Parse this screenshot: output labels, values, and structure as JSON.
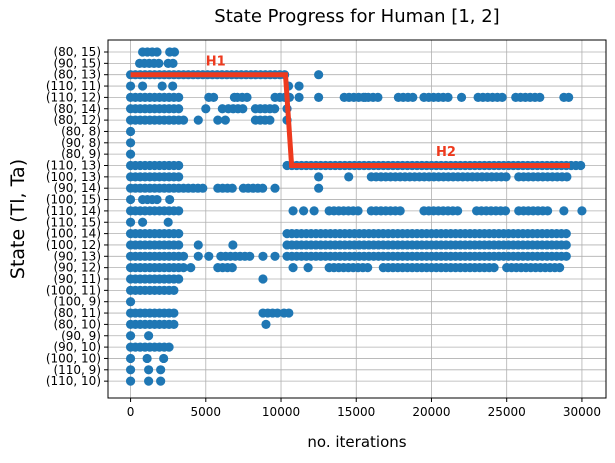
{
  "chart_data": {
    "type": "scatter",
    "title": "State Progress for Human [1, 2]",
    "xlabel": "no. iterations",
    "ylabel": "State (Tl, Ta)",
    "xlim": [
      -1500,
      31600
    ],
    "x_ticks": [
      0,
      5000,
      10000,
      15000,
      20000,
      25000,
      30000
    ],
    "x_tick_labels": [
      "0",
      "5000",
      "10000",
      "15000",
      "20000",
      "25000",
      "30000"
    ],
    "y_categories": [
      "(80, 15)",
      "(90, 15)",
      "(80, 13)",
      "(110, 11)",
      "(110, 12)",
      "(80, 14)",
      "(80, 12)",
      "(80, 8)",
      "(90, 8)",
      "(80, 9)",
      "(110, 13)",
      "(100, 13)",
      "(90, 14)",
      "(100, 15)",
      "(110, 14)",
      "(110, 15)",
      "(100, 14)",
      "(100, 12)",
      "(90, 13)",
      "(90, 12)",
      "(90, 11)",
      "(100, 11)",
      "(100, 9)",
      "(80, 11)",
      "(80, 10)",
      "(90, 9)",
      "(90, 10)",
      "(100, 10)",
      "(110, 9)",
      "(110, 10)"
    ],
    "grid": true,
    "point_color": "#1f77b4",
    "line_color": "#ee3a1e",
    "scatter_rows": [
      {
        "state": "(80, 15)",
        "ranges": [
          [
            800,
            1800
          ],
          [
            2600,
            3100
          ]
        ],
        "points": []
      },
      {
        "state": "(90, 15)",
        "ranges": [
          [
            600,
            1900
          ],
          [
            2500,
            3100
          ]
        ],
        "points": []
      },
      {
        "state": "(80, 13)",
        "ranges": [
          [
            0,
            10300
          ]
        ],
        "points": [
          12500
        ]
      },
      {
        "state": "(110, 11)",
        "ranges": [],
        "points": [
          0,
          800,
          2100,
          2800,
          10500,
          11200
        ]
      },
      {
        "state": "(110, 12)",
        "ranges": [
          [
            0,
            3200
          ],
          [
            5200,
            5600
          ],
          [
            7100,
            8000
          ],
          [
            9600,
            10600
          ],
          [
            14200,
            16700
          ],
          [
            17800,
            18900
          ],
          [
            19500,
            21100
          ],
          [
            23100,
            25000
          ],
          [
            25600,
            27200
          ],
          [
            28800,
            29200
          ]
        ],
        "points": [
          6900,
          11200,
          12500,
          15600,
          22000
        ]
      },
      {
        "state": "(80, 14)",
        "ranges": [
          [
            0,
            3200
          ],
          [
            6500,
            7500
          ],
          [
            8300,
            9800
          ]
        ],
        "points": [
          5000,
          6100,
          10400
        ]
      },
      {
        "state": "(80, 12)",
        "ranges": [
          [
            0,
            3800
          ],
          [
            8300,
            9400
          ]
        ],
        "points": [
          4500,
          5800,
          6300,
          10400
        ]
      },
      {
        "state": "(80, 8)",
        "ranges": [],
        "points": [
          0
        ]
      },
      {
        "state": "(90, 8)",
        "ranges": [],
        "points": [
          0
        ]
      },
      {
        "state": "(80, 9)",
        "ranges": [],
        "points": [
          0
        ]
      },
      {
        "state": "(110, 13)",
        "ranges": [
          [
            0,
            3200
          ],
          [
            10400,
            30000
          ]
        ],
        "points": []
      },
      {
        "state": "(100, 13)",
        "ranges": [
          [
            0,
            3200
          ],
          [
            16000,
            25000
          ],
          [
            25800,
            29200
          ]
        ],
        "points": [
          14500,
          12500
        ]
      },
      {
        "state": "(90, 14)",
        "ranges": [
          [
            0,
            4800
          ],
          [
            5800,
            7000
          ],
          [
            7500,
            8900
          ]
        ],
        "points": [
          9600,
          12500
        ]
      },
      {
        "state": "(100, 15)",
        "ranges": [
          [
            800,
            1800
          ]
        ],
        "points": [
          0,
          2600
        ]
      },
      {
        "state": "(110, 14)",
        "ranges": [
          [
            0,
            3200
          ],
          [
            13200,
            15200
          ],
          [
            16000,
            18200
          ],
          [
            19500,
            22000
          ],
          [
            23000,
            25000
          ],
          [
            25800,
            28000
          ]
        ],
        "points": [
          10800,
          11500,
          12200,
          28800,
          30000
        ]
      },
      {
        "state": "(110, 15)",
        "ranges": [],
        "points": [
          0,
          800,
          2500
        ]
      },
      {
        "state": "(100, 14)",
        "ranges": [
          [
            0,
            3200
          ],
          [
            10400,
            29200
          ]
        ],
        "points": []
      },
      {
        "state": "(100, 12)",
        "ranges": [
          [
            0,
            3200
          ],
          [
            10400,
            29200
          ]
        ],
        "points": [
          4500,
          6800
        ]
      },
      {
        "state": "(90, 13)",
        "ranges": [
          [
            0,
            3600
          ],
          [
            6000,
            8000
          ],
          [
            10400,
            29200
          ]
        ],
        "points": [
          4500,
          5200,
          8800,
          9600
        ]
      },
      {
        "state": "(90, 12)",
        "ranges": [
          [
            0,
            3600
          ],
          [
            5800,
            7000
          ],
          [
            13200,
            16000
          ],
          [
            16800,
            24200
          ],
          [
            25000,
            28800
          ]
        ],
        "points": [
          4000,
          10800,
          11800
        ]
      },
      {
        "state": "(90, 11)",
        "ranges": [
          [
            0,
            3200
          ]
        ],
        "points": [
          8800
        ]
      },
      {
        "state": "(100, 11)",
        "ranges": [
          [
            0,
            3000
          ]
        ],
        "points": []
      },
      {
        "state": "(100, 9)",
        "ranges": [],
        "points": [
          0
        ]
      },
      {
        "state": "(80, 11)",
        "ranges": [
          [
            0,
            3000
          ],
          [
            8800,
            9800
          ],
          [
            10200,
            10600
          ]
        ],
        "points": []
      },
      {
        "state": "(80, 10)",
        "ranges": [
          [
            0,
            3000
          ]
        ],
        "points": [
          9000
        ]
      },
      {
        "state": "(90, 9)",
        "ranges": [],
        "points": [
          0,
          1200
        ]
      },
      {
        "state": "(90, 10)",
        "ranges": [
          [
            0,
            2600
          ]
        ],
        "points": []
      },
      {
        "state": "(100, 10)",
        "ranges": [],
        "points": [
          0,
          1100,
          2200
        ]
      },
      {
        "state": "(110, 9)",
        "ranges": [],
        "points": [
          0,
          1200,
          2000
        ]
      },
      {
        "state": "(110, 10)",
        "ranges": [],
        "points": [
          0,
          1200,
          2000
        ]
      }
    ],
    "line_series": [
      {
        "x": [
          0,
          10300,
          10700,
          29200
        ],
        "y": [
          "(80, 13)",
          "(80, 13)",
          "(110, 13)",
          "(110, 13)"
        ]
      }
    ],
    "annotations": [
      {
        "text": "H1",
        "x": 5000,
        "y": "(90, 15)",
        "color": "#ee3a1e"
      },
      {
        "text": "H2",
        "x": 20300,
        "y": "(80, 9)",
        "color": "#ee3a1e"
      }
    ]
  }
}
